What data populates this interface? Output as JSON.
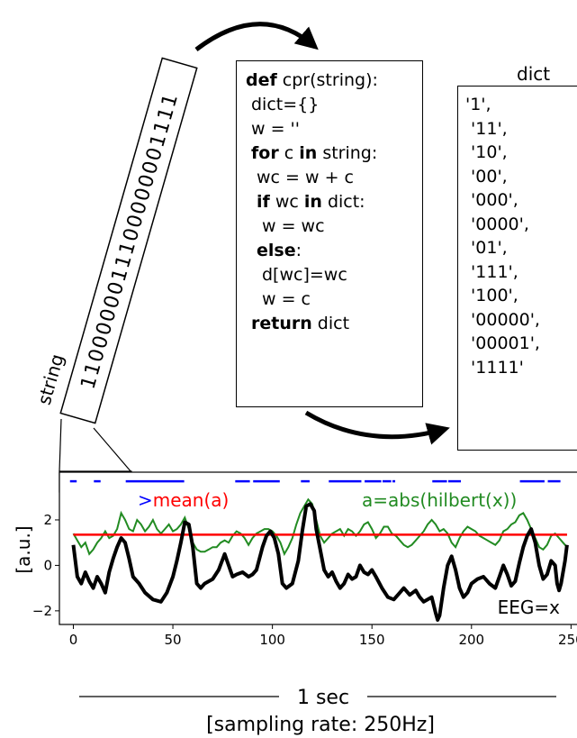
{
  "string_label": "string",
  "bitstring": "1100000011100000001111",
  "code": {
    "lines": [
      {
        "indent": 0,
        "parts": [
          {
            "t": "def",
            "kw": true
          },
          {
            "t": " cpr(string):",
            "kw": false
          }
        ]
      },
      {
        "indent": 1,
        "parts": [
          {
            "t": "dict={}",
            "kw": false
          }
        ]
      },
      {
        "indent": 1,
        "parts": [
          {
            "t": "w = ''",
            "kw": false
          }
        ]
      },
      {
        "indent": 1,
        "parts": [
          {
            "t": "for",
            "kw": true
          },
          {
            "t": " c ",
            "kw": false
          },
          {
            "t": "in",
            "kw": true
          },
          {
            "t": " string:",
            "kw": false
          }
        ]
      },
      {
        "indent": 2,
        "parts": [
          {
            "t": "wc = w + c",
            "kw": false
          }
        ]
      },
      {
        "indent": 2,
        "parts": [
          {
            "t": "if",
            "kw": true
          },
          {
            "t": " wc ",
            "kw": false
          },
          {
            "t": "in",
            "kw": true
          },
          {
            "t": " dict:",
            "kw": false
          }
        ]
      },
      {
        "indent": 3,
        "parts": [
          {
            "t": "w = wc",
            "kw": false
          }
        ]
      },
      {
        "indent": 2,
        "parts": [
          {
            "t": "else",
            "kw": true
          },
          {
            "t": ":",
            "kw": false
          }
        ]
      },
      {
        "indent": 3,
        "parts": [
          {
            "t": "d[wc]=wc",
            "kw": false
          }
        ]
      },
      {
        "indent": 3,
        "parts": [
          {
            "t": "w = c",
            "kw": false
          }
        ]
      },
      {
        "indent": 1,
        "parts": [
          {
            "t": "return",
            "kw": true
          },
          {
            "t": " dict",
            "kw": false
          }
        ]
      }
    ]
  },
  "dict": {
    "title": "dict",
    "items": [
      "'1',",
      " '11',",
      " '10',",
      " '00',",
      " '000',",
      " '0000',",
      " '01',",
      " '111',",
      " '100',",
      " '00000',",
      " '00001',",
      " '1111'"
    ]
  },
  "plot": {
    "ylabel": "[a.u.]",
    "xticks": [
      0,
      50,
      100,
      150,
      200,
      250
    ],
    "yticks": [
      -2,
      0,
      2
    ],
    "xlim": [
      -7,
      253
    ],
    "ylim": [
      -2.6,
      4.1
    ],
    "legend": {
      "gt": ">",
      "mean_label": "mean(a)",
      "hilbert_label": "a=abs(hilbert(x))",
      "eeg_label": "EEG=x"
    },
    "colors": {
      "eeg": "#000000",
      "envelope": "#228b22",
      "mean": "#ff0000",
      "binary": "#0000ff"
    },
    "mean_value": 1.35,
    "eeg": [
      [
        0,
        0.9
      ],
      [
        2,
        -0.5
      ],
      [
        4,
        -0.8
      ],
      [
        6,
        -0.3
      ],
      [
        8,
        -0.7
      ],
      [
        10,
        -1.0
      ],
      [
        12,
        -0.5
      ],
      [
        14,
        -0.8
      ],
      [
        16,
        -1.2
      ],
      [
        18,
        -0.3
      ],
      [
        20,
        0.3
      ],
      [
        22,
        0.8
      ],
      [
        24,
        1.2
      ],
      [
        26,
        1.0
      ],
      [
        28,
        0.3
      ],
      [
        30,
        -0.5
      ],
      [
        33,
        -0.8
      ],
      [
        36,
        -1.2
      ],
      [
        40,
        -1.5
      ],
      [
        44,
        -1.6
      ],
      [
        47,
        -1.2
      ],
      [
        50,
        -0.5
      ],
      [
        52,
        0.2
      ],
      [
        54,
        1.0
      ],
      [
        56,
        1.9
      ],
      [
        58,
        1.8
      ],
      [
        60,
        0.8
      ],
      [
        62,
        -0.8
      ],
      [
        64,
        -1.0
      ],
      [
        66,
        -0.8
      ],
      [
        70,
        -0.6
      ],
      [
        73,
        -0.2
      ],
      [
        76,
        0.5
      ],
      [
        78,
        0.0
      ],
      [
        80,
        -0.5
      ],
      [
        82,
        -0.4
      ],
      [
        85,
        -0.3
      ],
      [
        88,
        -0.5
      ],
      [
        90,
        -0.4
      ],
      [
        92,
        -0.2
      ],
      [
        95,
        0.8
      ],
      [
        97,
        1.3
      ],
      [
        99,
        1.5
      ],
      [
        101,
        1.2
      ],
      [
        103,
        0.5
      ],
      [
        105,
        -0.8
      ],
      [
        107,
        -1.0
      ],
      [
        110,
        -0.8
      ],
      [
        113,
        0.2
      ],
      [
        115,
        1.5
      ],
      [
        117,
        2.6
      ],
      [
        119,
        2.7
      ],
      [
        121,
        2.4
      ],
      [
        122,
        1.6
      ],
      [
        124,
        0.7
      ],
      [
        126,
        -0.2
      ],
      [
        128,
        -0.5
      ],
      [
        130,
        -0.3
      ],
      [
        132,
        -0.7
      ],
      [
        134,
        -1.0
      ],
      [
        136,
        -0.8
      ],
      [
        138,
        -0.4
      ],
      [
        140,
        -0.6
      ],
      [
        142,
        -0.5
      ],
      [
        144,
        0.0
      ],
      [
        146,
        -0.3
      ],
      [
        148,
        -0.4
      ],
      [
        150,
        -0.2
      ],
      [
        152,
        -0.5
      ],
      [
        155,
        -1.0
      ],
      [
        158,
        -1.4
      ],
      [
        161,
        -1.5
      ],
      [
        164,
        -1.2
      ],
      [
        166,
        -1.0
      ],
      [
        169,
        -1.3
      ],
      [
        172,
        -1.1
      ],
      [
        174,
        -1.4
      ],
      [
        176,
        -1.6
      ],
      [
        178,
        -1.5
      ],
      [
        180,
        -1.4
      ],
      [
        182,
        -2.1
      ],
      [
        183,
        -2.4
      ],
      [
        184,
        -2.2
      ],
      [
        186,
        -1.0
      ],
      [
        188,
        0.0
      ],
      [
        190,
        0.4
      ],
      [
        192,
        -0.2
      ],
      [
        194,
        -1.0
      ],
      [
        196,
        -1.4
      ],
      [
        198,
        -1.2
      ],
      [
        200,
        -0.8
      ],
      [
        203,
        -0.6
      ],
      [
        206,
        -0.5
      ],
      [
        209,
        -0.8
      ],
      [
        212,
        -1.0
      ],
      [
        214,
        -0.5
      ],
      [
        216,
        0.0
      ],
      [
        218,
        -0.4
      ],
      [
        220,
        -0.9
      ],
      [
        222,
        -0.7
      ],
      [
        224,
        0.1
      ],
      [
        226,
        0.8
      ],
      [
        228,
        1.3
      ],
      [
        230,
        1.6
      ],
      [
        232,
        1.0
      ],
      [
        234,
        0.0
      ],
      [
        236,
        -0.6
      ],
      [
        238,
        -0.4
      ],
      [
        240,
        0.2
      ],
      [
        242,
        0.0
      ],
      [
        243,
        -0.8
      ],
      [
        244,
        -1.1
      ],
      [
        245,
        -0.8
      ],
      [
        247,
        0.2
      ],
      [
        248,
        0.9
      ]
    ],
    "envelope": [
      [
        0,
        1.4
      ],
      [
        2,
        1.1
      ],
      [
        4,
        0.8
      ],
      [
        6,
        1.0
      ],
      [
        8,
        0.5
      ],
      [
        10,
        0.7
      ],
      [
        12,
        1.0
      ],
      [
        14,
        1.2
      ],
      [
        16,
        1.5
      ],
      [
        18,
        1.2
      ],
      [
        20,
        1.3
      ],
      [
        22,
        1.6
      ],
      [
        24,
        2.3
      ],
      [
        26,
        2.0
      ],
      [
        28,
        1.6
      ],
      [
        30,
        1.5
      ],
      [
        32,
        2.0
      ],
      [
        34,
        1.8
      ],
      [
        36,
        1.5
      ],
      [
        38,
        1.7
      ],
      [
        40,
        2.0
      ],
      [
        42,
        1.6
      ],
      [
        44,
        1.4
      ],
      [
        46,
        1.6
      ],
      [
        48,
        1.8
      ],
      [
        50,
        1.5
      ],
      [
        52,
        1.6
      ],
      [
        54,
        1.8
      ],
      [
        56,
        2.1
      ],
      [
        58,
        1.6
      ],
      [
        60,
        1.0
      ],
      [
        62,
        0.7
      ],
      [
        64,
        0.6
      ],
      [
        66,
        0.6
      ],
      [
        68,
        0.7
      ],
      [
        70,
        0.8
      ],
      [
        72,
        0.8
      ],
      [
        74,
        1.0
      ],
      [
        76,
        1.1
      ],
      [
        78,
        1.0
      ],
      [
        80,
        1.3
      ],
      [
        82,
        1.5
      ],
      [
        84,
        1.4
      ],
      [
        86,
        1.2
      ],
      [
        88,
        0.9
      ],
      [
        90,
        1.2
      ],
      [
        92,
        1.4
      ],
      [
        94,
        1.5
      ],
      [
        96,
        1.6
      ],
      [
        98,
        1.6
      ],
      [
        100,
        1.5
      ],
      [
        102,
        1.3
      ],
      [
        104,
        1.0
      ],
      [
        106,
        0.5
      ],
      [
        108,
        0.8
      ],
      [
        110,
        1.2
      ],
      [
        112,
        1.8
      ],
      [
        114,
        2.3
      ],
      [
        116,
        2.6
      ],
      [
        118,
        2.9
      ],
      [
        120,
        2.7
      ],
      [
        122,
        2.0
      ],
      [
        124,
        1.3
      ],
      [
        126,
        1.0
      ],
      [
        128,
        1.2
      ],
      [
        130,
        1.4
      ],
      [
        132,
        1.5
      ],
      [
        134,
        1.6
      ],
      [
        136,
        1.3
      ],
      [
        138,
        1.6
      ],
      [
        140,
        1.5
      ],
      [
        142,
        1.3
      ],
      [
        144,
        1.5
      ],
      [
        146,
        1.8
      ],
      [
        148,
        1.9
      ],
      [
        150,
        1.6
      ],
      [
        152,
        1.2
      ],
      [
        154,
        1.4
      ],
      [
        156,
        1.7
      ],
      [
        158,
        1.7
      ],
      [
        160,
        1.4
      ],
      [
        162,
        1.3
      ],
      [
        164,
        1.1
      ],
      [
        166,
        0.9
      ],
      [
        168,
        0.8
      ],
      [
        170,
        0.9
      ],
      [
        172,
        1.1
      ],
      [
        174,
        1.3
      ],
      [
        176,
        1.5
      ],
      [
        178,
        1.8
      ],
      [
        180,
        2.0
      ],
      [
        182,
        1.8
      ],
      [
        184,
        1.5
      ],
      [
        186,
        1.6
      ],
      [
        188,
        1.4
      ],
      [
        190,
        1.0
      ],
      [
        192,
        0.8
      ],
      [
        194,
        1.2
      ],
      [
        196,
        1.5
      ],
      [
        198,
        1.7
      ],
      [
        200,
        1.6
      ],
      [
        202,
        1.5
      ],
      [
        204,
        1.3
      ],
      [
        206,
        1.2
      ],
      [
        208,
        1.1
      ],
      [
        210,
        1.0
      ],
      [
        212,
        0.9
      ],
      [
        214,
        1.1
      ],
      [
        216,
        1.5
      ],
      [
        218,
        1.6
      ],
      [
        220,
        1.8
      ],
      [
        222,
        1.9
      ],
      [
        224,
        2.2
      ],
      [
        226,
        2.3
      ],
      [
        228,
        2.0
      ],
      [
        230,
        1.6
      ],
      [
        232,
        1.2
      ],
      [
        234,
        0.8
      ],
      [
        236,
        0.7
      ],
      [
        238,
        0.9
      ],
      [
        240,
        1.3
      ],
      [
        242,
        1.4
      ],
      [
        244,
        1.2
      ],
      [
        246,
        1.0
      ],
      [
        248,
        0.8
      ]
    ],
    "binary_segments": [
      [
        -1,
        1
      ],
      [
        11,
        13
      ],
      [
        27,
        55
      ],
      [
        82,
        88
      ],
      [
        91,
        103
      ],
      [
        115,
        118
      ],
      [
        129,
        144
      ],
      [
        147,
        154
      ],
      [
        156,
        159
      ],
      [
        161,
        161
      ],
      [
        181,
        187
      ],
      [
        189,
        194
      ],
      [
        225,
        236
      ],
      [
        239,
        244
      ]
    ],
    "binary_y": 3.7,
    "xlabel": "1 sec",
    "sublabel": "[sampling rate: 250Hz]"
  }
}
